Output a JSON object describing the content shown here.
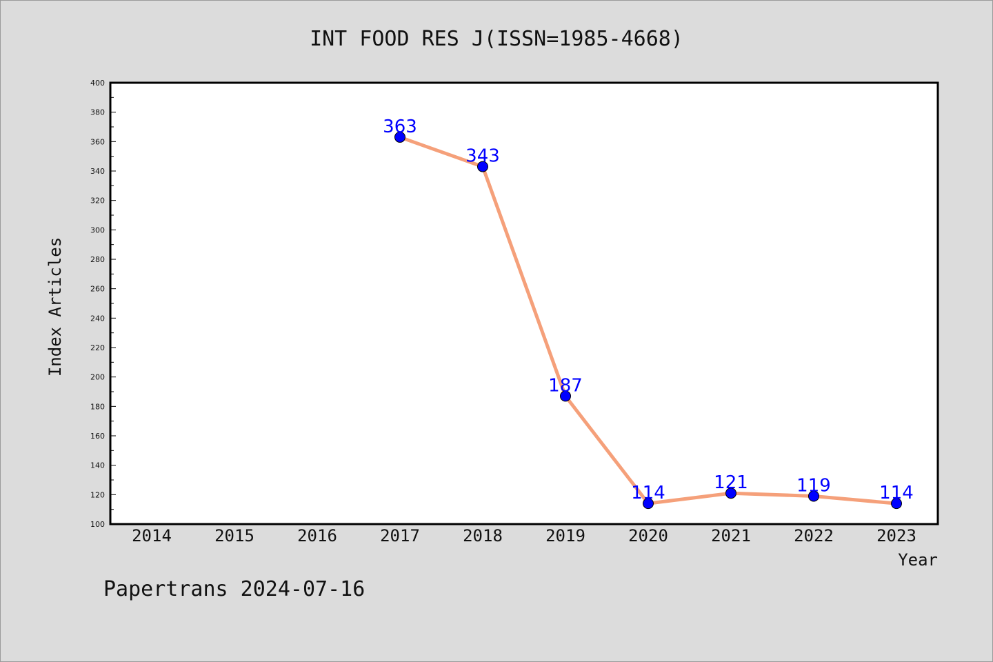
{
  "chart_data": {
    "type": "line",
    "title": "INT FOOD RES J(ISSN=1985-4668)",
    "xlabel": "Year",
    "ylabel": "Index Articles",
    "categories": [
      "2014",
      "2015",
      "2016",
      "2017",
      "2018",
      "2019",
      "2020",
      "2021",
      "2022",
      "2023"
    ],
    "series": [
      {
        "x": [
          "2017",
          "2018",
          "2019",
          "2020",
          "2021",
          "2022",
          "2023"
        ],
        "values": [
          363,
          343,
          187,
          114,
          121,
          119,
          114
        ]
      }
    ],
    "ylim": [
      100,
      400
    ],
    "ytick_step": 20,
    "yticks": [
      "100",
      "120",
      "140",
      "160",
      "180",
      "200",
      "220",
      "240",
      "260",
      "280",
      "300",
      "320",
      "340",
      "360",
      "380",
      "400"
    ],
    "grid": false,
    "legend": "none",
    "line_color": "#f5a07a",
    "marker_color": "#0000ff",
    "label_color": "#0000ff"
  },
  "footer": "Papertrans 2024-07-16"
}
